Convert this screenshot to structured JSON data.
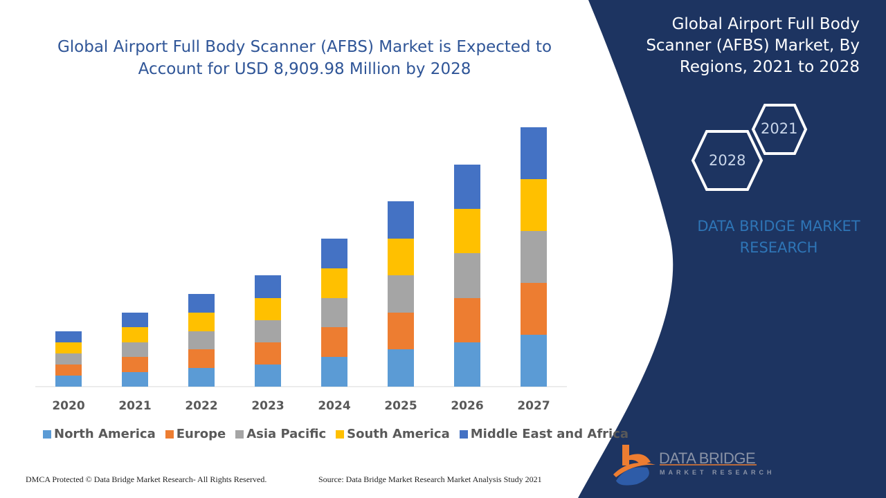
{
  "title": "Global Airport Full Body Scanner (AFBS) Market is Expected to Account for USD 8,909.98 Million by 2028",
  "side_panel": {
    "title": "Global Airport Full Body Scanner (AFBS) Market, By Regions, 2021 to 2028",
    "hex_years": [
      "2021",
      "2028"
    ],
    "brand": "DATA BRIDGE MARKET RESEARCH",
    "logo_name": "DATA BRIDGE",
    "logo_sub": "MARKET RESEARCH",
    "background_color": "#1d3461"
  },
  "footer": {
    "left": "DMCA Protected © Data Bridge Market Research- All Rights Reserved.",
    "right": "Source: Data Bridge Market Research Market Analysis Study 2021"
  },
  "chart_data": {
    "type": "bar",
    "stacked": true,
    "title": "Global Airport Full Body Scanner (AFBS) Market is Expected to Account for USD 8,909.98 Million by 2028",
    "xlabel": "",
    "ylabel": "",
    "ylim": [
      0,
      400
    ],
    "grid": false,
    "legend_position": "bottom",
    "categories": [
      "2020",
      "2021",
      "2022",
      "2023",
      "2024",
      "2025",
      "2026",
      "2027"
    ],
    "series": [
      {
        "name": "North America",
        "color": "#5b9bd5",
        "values": [
          16,
          21,
          27,
          32,
          43,
          54,
          64,
          75
        ]
      },
      {
        "name": "Europe",
        "color": "#ed7d31",
        "values": [
          16,
          22,
          27,
          32,
          43,
          53,
          64,
          75
        ]
      },
      {
        "name": "Asia Pacific",
        "color": "#a5a5a5",
        "values": [
          16,
          21,
          26,
          32,
          42,
          54,
          65,
          75
        ]
      },
      {
        "name": "South America",
        "color": "#ffc000",
        "values": [
          16,
          22,
          27,
          32,
          43,
          53,
          64,
          75
        ]
      },
      {
        "name": "Middle East and Africa",
        "color": "#4472c4",
        "values": [
          16,
          21,
          27,
          33,
          43,
          54,
          64,
          75
        ]
      }
    ]
  }
}
